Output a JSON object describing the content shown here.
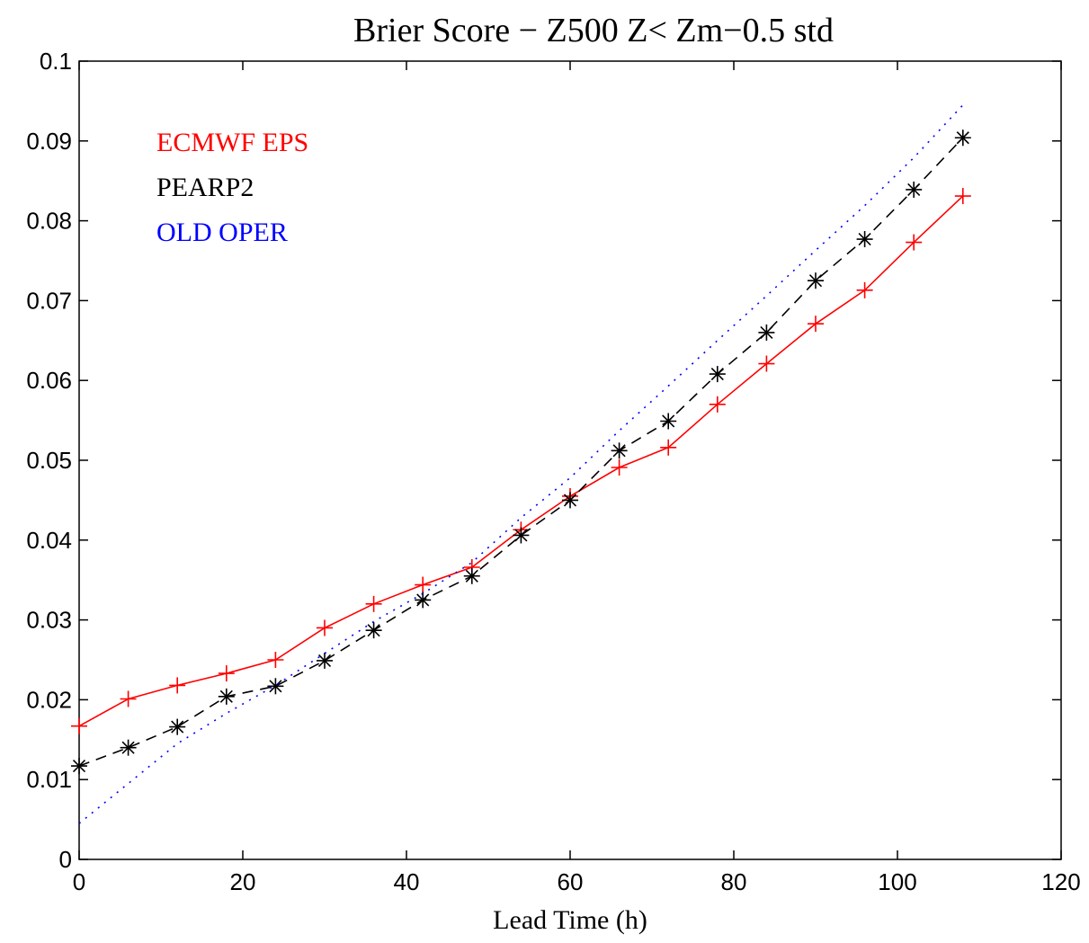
{
  "chart_data": {
    "type": "line",
    "title": "Brier Score − Z500    Z< Zm−0.5 std",
    "xlabel": "Lead Time (h)",
    "ylabel": "",
    "xlim": [
      0,
      120
    ],
    "ylim": [
      0,
      0.1
    ],
    "xticks": [
      0,
      20,
      40,
      60,
      80,
      100,
      120
    ],
    "yticks": [
      0,
      0.01,
      0.02,
      0.03,
      0.04,
      0.05,
      0.06,
      0.07,
      0.08,
      0.09,
      0.1
    ],
    "xtick_labels": [
      "0",
      "20",
      "40",
      "60",
      "80",
      "100",
      "120"
    ],
    "ytick_labels": [
      "0",
      "0.01",
      "0.02",
      "0.03",
      "0.04",
      "0.05",
      "0.06",
      "0.07",
      "0.08",
      "0.09",
      "0.1"
    ],
    "grid": false,
    "legend_position": "top-left",
    "series": [
      {
        "name": "ECMWF EPS",
        "color": "#ff0000",
        "line_style": "solid",
        "marker": "plus",
        "x": [
          0,
          6,
          12,
          18,
          24,
          30,
          36,
          42,
          48,
          54,
          60,
          66,
          72,
          78,
          84,
          90,
          96,
          102,
          108
        ],
        "y": [
          0.0167,
          0.0201,
          0.0218,
          0.0233,
          0.025,
          0.029,
          0.032,
          0.0344,
          0.0366,
          0.0413,
          0.0455,
          0.0491,
          0.0516,
          0.057,
          0.0621,
          0.0671,
          0.0713,
          0.0773,
          0.0831
        ]
      },
      {
        "name": "PEARP2",
        "color": "#000000",
        "line_style": "dashed",
        "marker": "asterisk",
        "x": [
          0,
          6,
          12,
          18,
          24,
          30,
          36,
          42,
          48,
          54,
          60,
          66,
          72,
          78,
          84,
          90,
          96,
          102,
          108
        ],
        "y": [
          0.0117,
          0.014,
          0.0166,
          0.0204,
          0.0217,
          0.0249,
          0.0287,
          0.0325,
          0.0355,
          0.0406,
          0.045,
          0.0512,
          0.0549,
          0.0608,
          0.066,
          0.0725,
          0.0777,
          0.0839,
          0.0904
        ]
      },
      {
        "name": "OLD OPER",
        "color": "#0000ff",
        "line_style": "dotted",
        "marker": "none",
        "x": [
          0,
          6,
          12,
          18,
          24,
          30,
          36,
          42,
          48,
          54,
          60,
          66,
          72,
          78,
          84,
          90,
          96,
          102,
          108
        ],
        "y": [
          0.0045,
          0.0095,
          0.0145,
          0.0183,
          0.0218,
          0.0258,
          0.0298,
          0.0333,
          0.0372,
          0.0428,
          0.0478,
          0.0537,
          0.0593,
          0.065,
          0.0706,
          0.0763,
          0.0819,
          0.0879,
          0.0945
        ]
      }
    ]
  }
}
